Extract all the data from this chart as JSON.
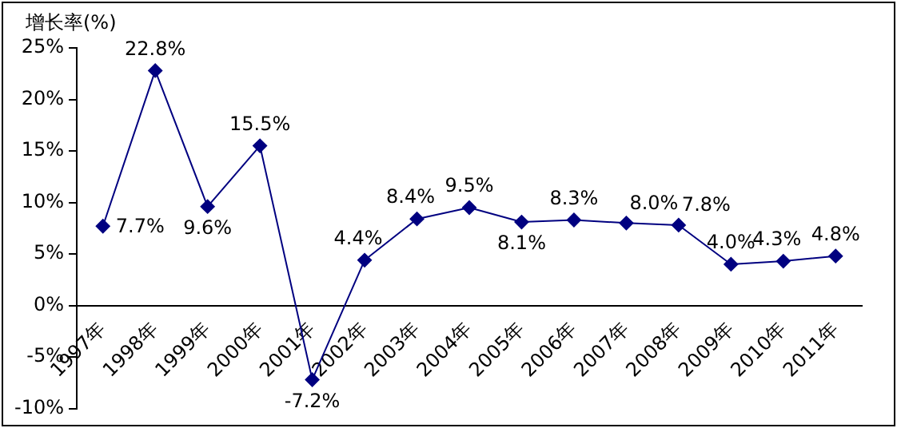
{
  "chart_data": {
    "type": "line",
    "ylabel": "增长率(%)",
    "categories": [
      "1997年",
      "1998年",
      "1999年",
      "2000年",
      "2001年",
      "2002年",
      "2003年",
      "2004年",
      "2005年",
      "2006年",
      "2007年",
      "2008年",
      "2009年",
      "2010年",
      "2011年"
    ],
    "series": [
      {
        "color": "#000080",
        "values": [
          7.7,
          22.8,
          9.6,
          15.5,
          -7.2,
          4.4,
          8.4,
          9.5,
          8.1,
          8.3,
          8.0,
          7.8,
          4.0,
          4.3,
          4.8
        ],
        "value_labels": [
          "7.7%",
          "22.8%",
          "9.6%",
          "15.5%",
          "-7.2%",
          "4.4%",
          "8.4%",
          "9.5%",
          "8.1%",
          "8.3%",
          "8.0%",
          "7.8%",
          "4.0%",
          "4.3%",
          "4.8%"
        ]
      }
    ],
    "ylim": [
      -10,
      25
    ],
    "yticks": [
      {
        "value": -10,
        "label": "-10%"
      },
      {
        "value": -5,
        "label": "-5%"
      },
      {
        "value": 0,
        "label": "0%"
      },
      {
        "value": 5,
        "label": "5%"
      },
      {
        "value": 10,
        "label": "10%"
      },
      {
        "value": 15,
        "label": "15%"
      },
      {
        "value": 20,
        "label": "20%"
      },
      {
        "value": 25,
        "label": "25%"
      }
    ],
    "grid": false,
    "legend": false,
    "marker": "diamond",
    "line_style": "solid"
  }
}
